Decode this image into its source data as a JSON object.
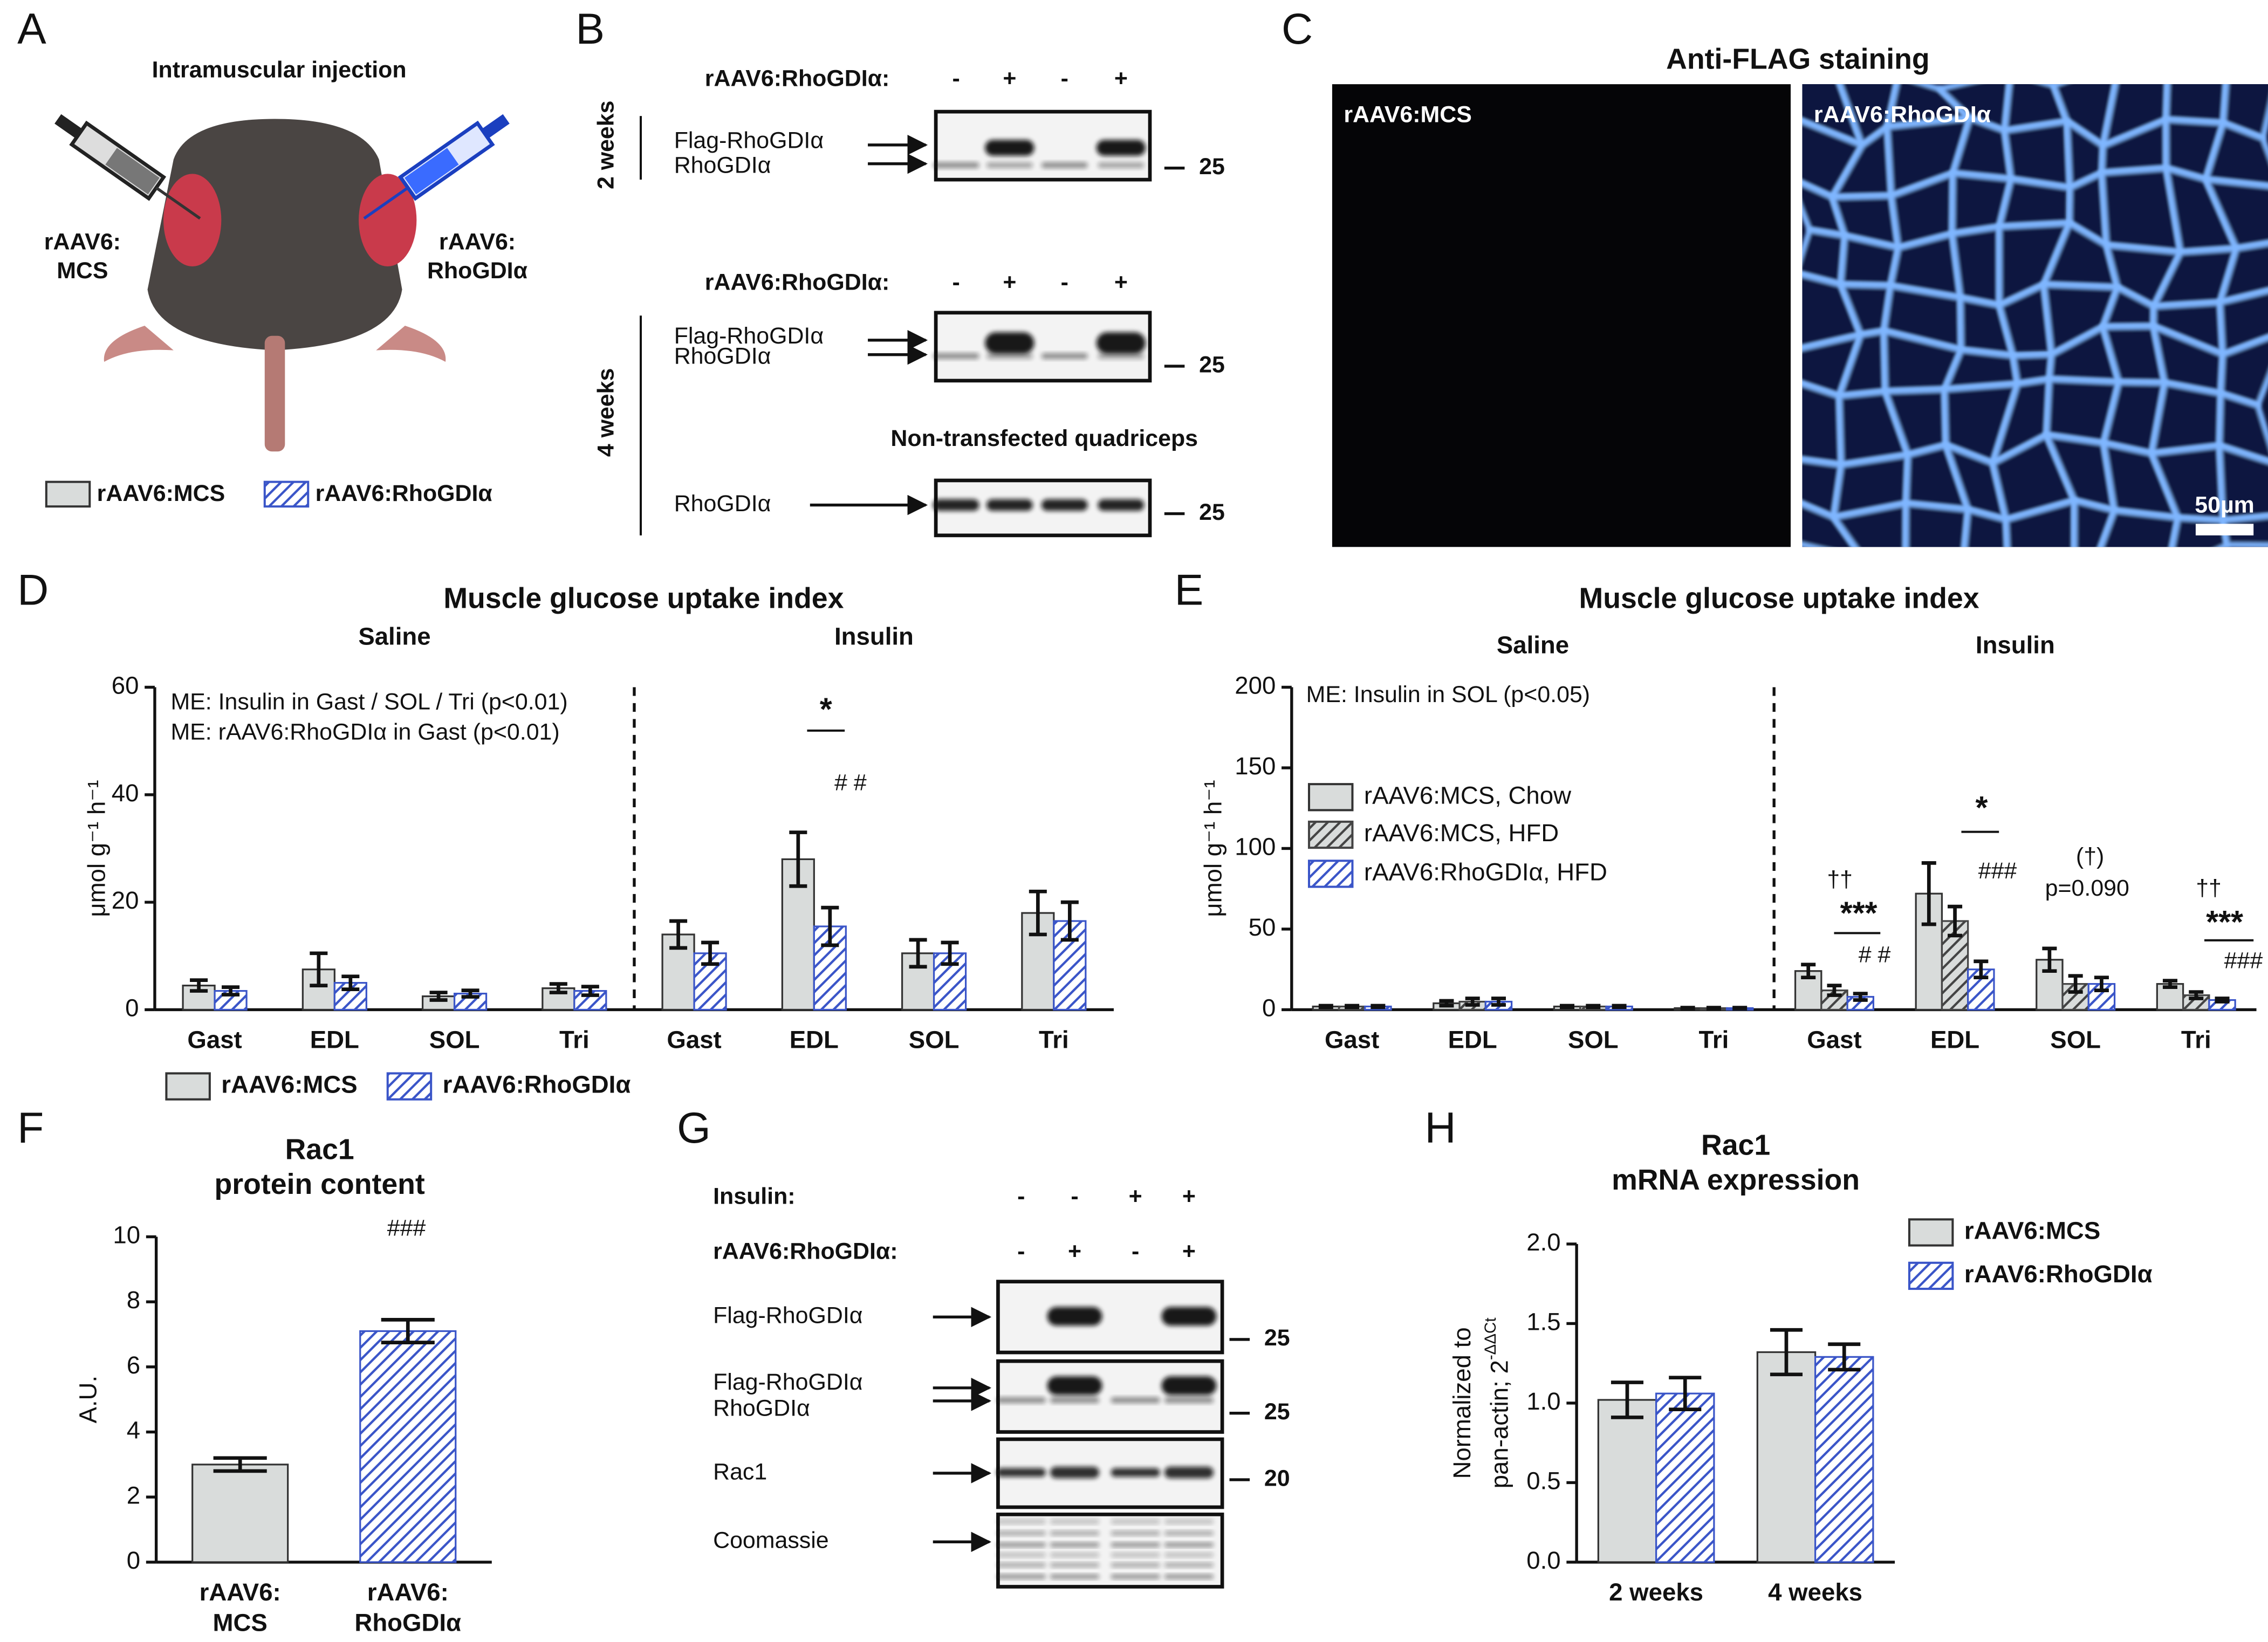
{
  "panels": {
    "A": {
      "letter": "A",
      "title": "Intramuscular injection",
      "left_label": [
        "rAAV6:",
        "MCS"
      ],
      "right_label": [
        "rAAV6:",
        "RhoGDIα"
      ],
      "legend": [
        "rAAV6:MCS",
        "rAAV6:RhoGDIα"
      ],
      "legend_styles": [
        {
          "color": "#d9dcdb"
        },
        {
          "color": "#ffffff",
          "hatch_color": "#3a55c8"
        }
      ]
    },
    "B": {
      "letter": "B",
      "blot1": {
        "condition": "rAAV6:RhoGDIα:",
        "signs": [
          "-",
          "+",
          "-",
          "+"
        ],
        "time": "2 weeks",
        "bands": [
          "Flag-RhoGDIα",
          "RhoGDIα"
        ],
        "marker": 25
      },
      "blot2": {
        "condition": "rAAV6:RhoGDIα:",
        "signs": [
          "-",
          "+",
          "-",
          "+"
        ],
        "time": "4 weeks",
        "bands": [
          "Flag-RhoGDIα",
          "RhoGDIα"
        ],
        "marker": 25
      },
      "blot3": {
        "title": "Non-transfected quadriceps",
        "band": "RhoGDIα",
        "marker": 25
      }
    },
    "C": {
      "letter": "C",
      "title": "Anti-FLAG staining",
      "left": "rAAV6:MCS",
      "right": "rAAV6:RhoGDIα",
      "scale_bar": "50µm"
    },
    "G": {
      "letter": "G",
      "rows": [
        {
          "label": "Insulin:",
          "signs": [
            "-",
            "-",
            "+",
            "+"
          ]
        },
        {
          "label": "rAAV6:RhoGDIα:",
          "signs": [
            "-",
            "+",
            "-",
            "+"
          ]
        }
      ],
      "blots": [
        {
          "labels": [
            "Flag-RhoGDIα"
          ],
          "marker": 25
        },
        {
          "labels": [
            "Flag-RhoGDIα",
            "RhoGDIα"
          ],
          "marker": 25
        },
        {
          "labels": [
            "Rac1"
          ],
          "marker": 20
        },
        {
          "labels": [
            "Coomassie"
          ]
        }
      ]
    }
  },
  "chart_data": [
    {
      "type": "bar",
      "panel": "D",
      "title": "Muscle glucose uptake index",
      "groups": [
        "Saline",
        "Insulin"
      ],
      "categories": [
        "Gast",
        "EDL",
        "SOL",
        "Tri",
        "Gast",
        "EDL",
        "SOL",
        "Tri"
      ],
      "ylabel": "μmol g⁻¹ h⁻¹",
      "ylim": [
        0,
        60
      ],
      "yticks": [
        0,
        20,
        40,
        60
      ],
      "legend": "bottom",
      "series": [
        {
          "name": "rAAV6:MCS",
          "color": "#d9dcdb",
          "values": [
            4.5,
            7.5,
            2.5,
            4,
            14,
            28,
            10.5,
            18
          ],
          "errors": [
            1,
            3,
            0.7,
            0.8,
            2.5,
            5,
            2.5,
            4
          ]
        },
        {
          "name": "rAAV6:RhoGDIα",
          "color": "#ffffff",
          "hatch_color": "#3a55c8",
          "values": [
            3.5,
            5,
            3,
            3.5,
            10.5,
            15.5,
            10.5,
            16.5
          ],
          "errors": [
            0.7,
            1.2,
            0.6,
            0.8,
            2,
            3.5,
            2,
            3.5
          ]
        }
      ],
      "annotations": [
        "ME: Insulin in Gast / SOL / Tri (p<0.01)",
        "ME: rAAV6:RhoGDIα in Gast (p<0.01)",
        "*",
        "# #"
      ]
    },
    {
      "type": "bar",
      "panel": "E",
      "title": "Muscle glucose uptake index",
      "groups": [
        "Saline",
        "Insulin"
      ],
      "categories": [
        "Gast",
        "EDL",
        "SOL",
        "Tri",
        "Gast",
        "EDL",
        "SOL",
        "Tri"
      ],
      "ylabel": "μmol g⁻¹ h⁻¹",
      "ylim": [
        0,
        200
      ],
      "yticks": [
        0,
        50,
        100,
        150,
        200
      ],
      "legend": "upper left",
      "series": [
        {
          "name": "rAAV6:MCS, Chow",
          "color": "#d9dcdb",
          "values": [
            2,
            4,
            2,
            1,
            24,
            72,
            31,
            16
          ],
          "errors": [
            0.5,
            1.5,
            0.5,
            0.3,
            4,
            19,
            7,
            2
          ]
        },
        {
          "name": "rAAV6:MCS, HFD",
          "color": "#d9dcdb",
          "hatch_color": "#444444",
          "values": [
            2,
            5,
            2,
            1,
            12,
            55,
            16,
            9
          ],
          "errors": [
            0.5,
            2,
            0.5,
            0.3,
            3,
            9,
            5,
            2
          ]
        },
        {
          "name": "rAAV6:RhoGDIα, HFD",
          "color": "#ffffff",
          "hatch_color": "#3a55c8",
          "values": [
            2,
            5,
            2,
            1,
            8,
            25,
            16,
            6
          ],
          "errors": [
            0.5,
            2,
            0.5,
            0.3,
            2,
            5,
            4,
            1
          ]
        }
      ],
      "annotations": [
        "ME: Insulin in SOL (p<0.05)",
        "††",
        "***",
        "# #",
        "*",
        "###",
        "(†)",
        "p=0.090",
        "††",
        "***",
        "###"
      ]
    },
    {
      "type": "bar",
      "panel": "F",
      "title": [
        "Rac1",
        "protein content"
      ],
      "categories": [
        [
          "rAAV6:",
          "MCS"
        ],
        [
          "rAAV6:",
          "RhoGDIα"
        ]
      ],
      "values": [
        3.0,
        7.1
      ],
      "errors": [
        0.2,
        0.35
      ],
      "bar_styles": [
        {
          "color": "#d9dcdb"
        },
        {
          "color": "#ffffff",
          "hatch_color": "#3a55c8"
        }
      ],
      "ylabel": "A.U.",
      "ylim": [
        0,
        10
      ],
      "yticks": [
        0,
        2,
        4,
        6,
        8,
        10
      ],
      "annotations": [
        "###"
      ]
    },
    {
      "type": "bar",
      "panel": "H",
      "title": [
        "Rac1",
        "mRNA expression"
      ],
      "categories": [
        "2 weeks",
        "4 weeks"
      ],
      "ylabel": [
        "Normalized to",
        "pan-actin; 2"
      ],
      "ylabel_sup": "-ΔΔCt",
      "ylim": [
        0,
        2
      ],
      "yticks": [
        {
          "value": 0,
          "label": "0.0"
        },
        0.5,
        {
          "value": 1,
          "label": "1.0"
        },
        1.5,
        {
          "value": 2,
          "label": "2.0"
        }
      ],
      "legend": "right",
      "series": [
        {
          "name": "rAAV6:MCS",
          "color": "#d9dcdb",
          "values": [
            1.02,
            1.32
          ],
          "errors": [
            0.11,
            0.14
          ]
        },
        {
          "name": "rAAV6:RhoGDIα",
          "color": "#ffffff",
          "hatch_color": "#3a55c8",
          "values": [
            1.06,
            1.29
          ],
          "errors": [
            0.1,
            0.08
          ]
        }
      ]
    }
  ]
}
